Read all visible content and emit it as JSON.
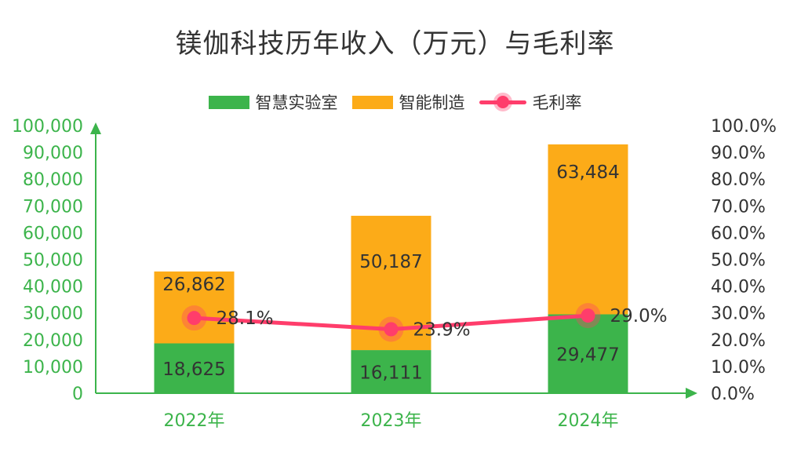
{
  "chart_data": {
    "type": "bar",
    "stacked": true,
    "title": "镁伽科技历年收入（万元）与毛利率",
    "categories": [
      "2022年",
      "2023年",
      "2024年"
    ],
    "series": [
      {
        "name": "智慧实验室",
        "type": "bar",
        "color": "#3cb44b",
        "values": [
          18625,
          16111,
          29477
        ],
        "labels": [
          "18,625",
          "16,111",
          "29,477"
        ]
      },
      {
        "name": "智能制造",
        "type": "bar",
        "color": "#fcab18",
        "values": [
          26862,
          50187,
          63484
        ],
        "labels": [
          "26,862",
          "50,187",
          "63,484"
        ]
      },
      {
        "name": "毛利率",
        "type": "line",
        "axis": "right",
        "color": "#ff3d6b",
        "values": [
          28.1,
          23.9,
          29.0
        ],
        "labels": [
          "28.1%",
          "23.9%",
          "29.0%"
        ]
      }
    ],
    "y_left": {
      "min": 0,
      "max": 100000,
      "ticks": [
        "0",
        "10,000",
        "20,000",
        "30,000",
        "40,000",
        "50,000",
        "60,000",
        "70,000",
        "80,000",
        "90,000",
        "100,000"
      ],
      "color": "#3cb44b"
    },
    "y_right": {
      "min": 0,
      "max": 100,
      "ticks": [
        "0.0%",
        "10.0%",
        "20.0%",
        "30.0%",
        "40.0%",
        "50.0%",
        "60.0%",
        "70.0%",
        "80.0%",
        "90.0%",
        "100.0%"
      ]
    },
    "axis_color": "#3cb44b",
    "grid": false,
    "legend_position": "top"
  }
}
